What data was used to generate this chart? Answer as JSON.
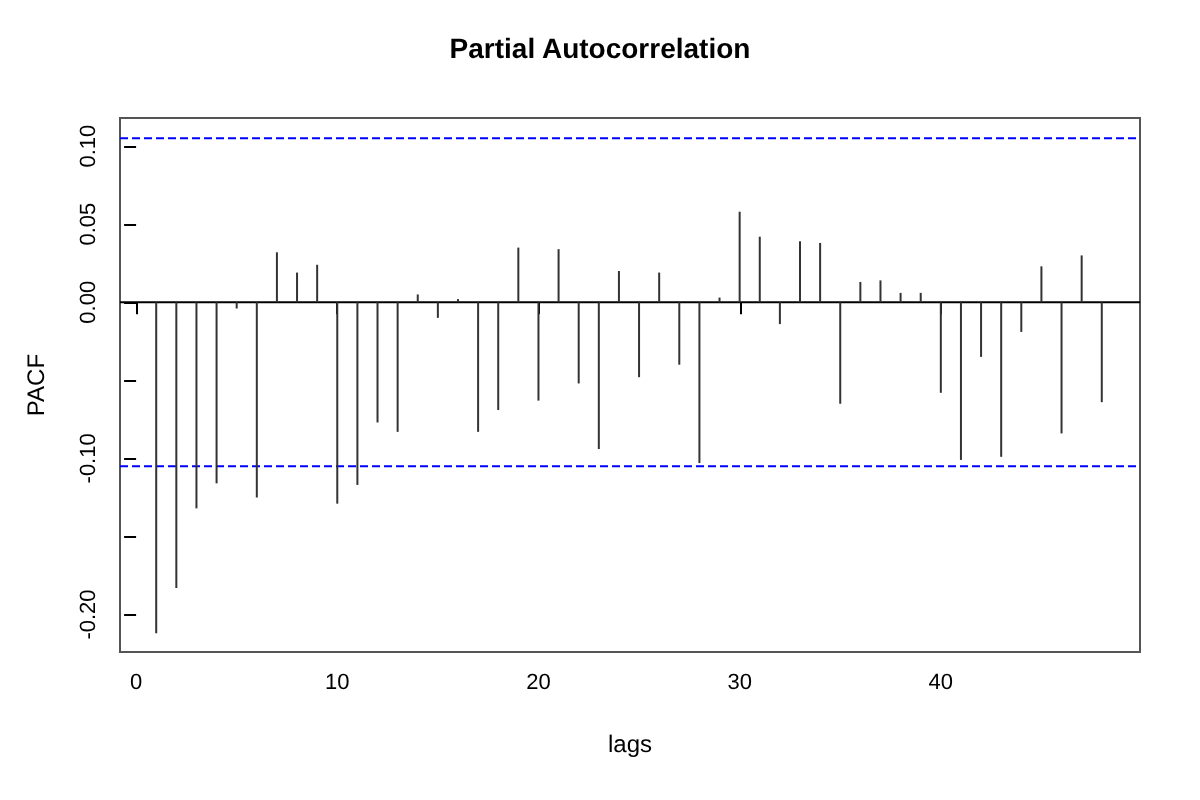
{
  "chart_data": {
    "type": "bar",
    "title": "Partial Autocorrelation",
    "xlabel": "lags",
    "ylabel": "PACF",
    "color": "#333333",
    "x": [
      1,
      2,
      3,
      4,
      5,
      6,
      7,
      8,
      9,
      10,
      11,
      12,
      13,
      14,
      15,
      16,
      17,
      18,
      19,
      20,
      21,
      22,
      23,
      24,
      25,
      26,
      27,
      28,
      29,
      30,
      31,
      32,
      33,
      34,
      35,
      36,
      37,
      38,
      39,
      40,
      41,
      42,
      43,
      44,
      45,
      46,
      47,
      48
    ],
    "values": [
      -0.212,
      -0.183,
      -0.132,
      -0.116,
      -0.004,
      -0.125,
      0.032,
      0.019,
      0.024,
      -0.129,
      -0.117,
      -0.077,
      -0.083,
      0.005,
      -0.01,
      0.002,
      -0.083,
      -0.069,
      0.035,
      -0.063,
      0.034,
      -0.052,
      -0.094,
      0.02,
      -0.048,
      0.019,
      -0.04,
      -0.103,
      0.003,
      0.058,
      0.042,
      -0.014,
      0.039,
      0.038,
      -0.065,
      0.013,
      0.014,
      0.006,
      0.006,
      -0.058,
      -0.101,
      -0.035,
      -0.099,
      -0.019,
      0.023,
      -0.084,
      0.03,
      -0.064
    ],
    "xlim": [
      -0.8,
      49.9
    ],
    "ylim": [
      -0.224,
      0.118
    ],
    "xticks": [
      0,
      10,
      20,
      30,
      40
    ],
    "yticks": [
      {
        "value": -0.2,
        "label": "-0.20"
      },
      {
        "value": -0.15,
        "label": null
      },
      {
        "value": -0.1,
        "label": "-0.10"
      },
      {
        "value": -0.05,
        "label": null
      },
      {
        "value": 0,
        "label": "0.00"
      },
      {
        "value": 0.05,
        "label": "0.05"
      },
      {
        "value": 0.1,
        "label": "0.10"
      }
    ],
    "ref_lines": [
      {
        "axis": "y",
        "value": 0.105,
        "color": "#0000ff",
        "line_style": "dashed"
      },
      {
        "axis": "y",
        "value": -0.105,
        "color": "#0000ff",
        "line_style": "dashed"
      },
      {
        "axis": "y",
        "value": 0,
        "color": "#000000",
        "line_style": "solid"
      }
    ],
    "grid": false
  }
}
